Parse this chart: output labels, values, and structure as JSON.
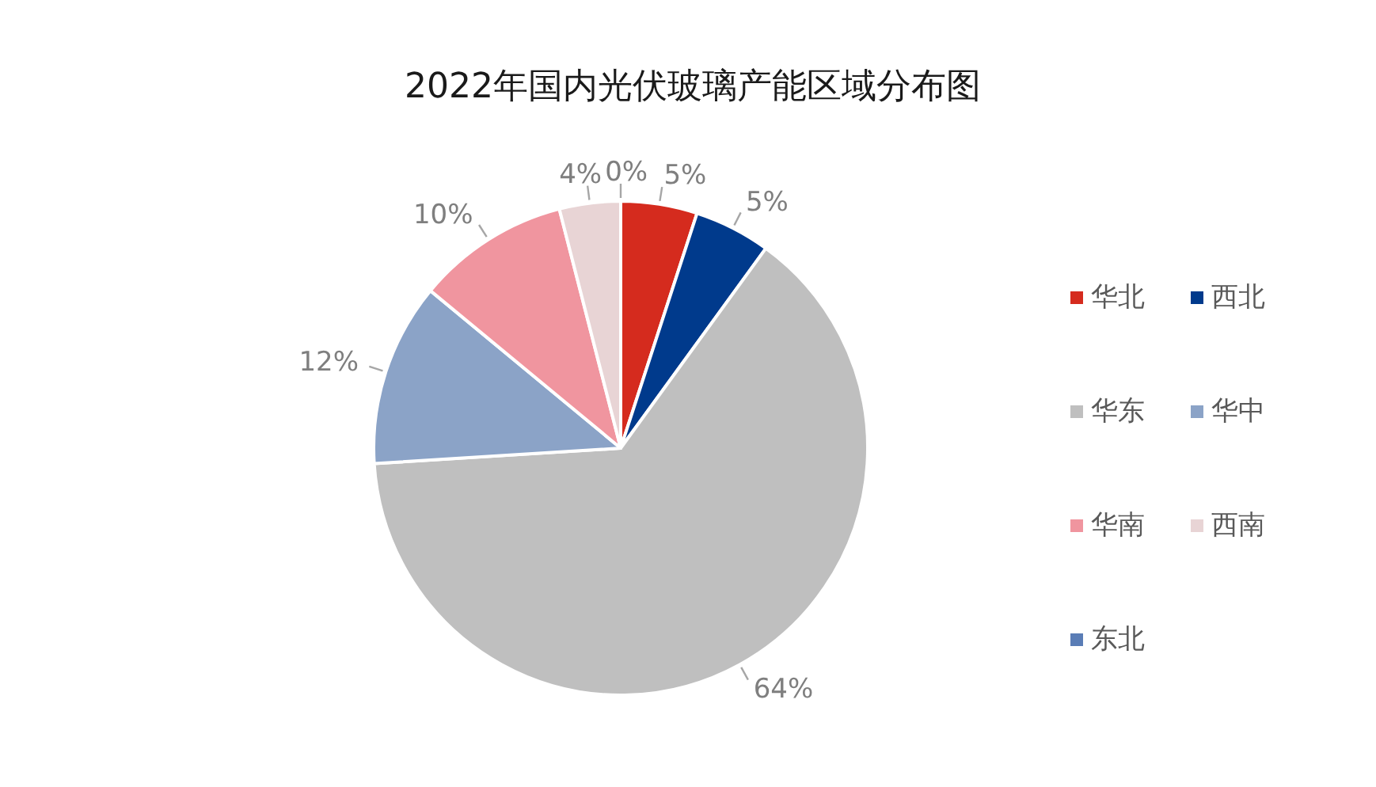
{
  "chart_data": {
    "type": "pie",
    "title": "2022年国内光伏玻璃产能区域分布图",
    "categories": [
      "华北",
      "西北",
      "华东",
      "华中",
      "华南",
      "西南",
      "东北"
    ],
    "values": [
      5,
      5,
      64,
      12,
      10,
      4,
      0
    ],
    "value_labels": [
      "5%",
      "5%",
      "64%",
      "12%",
      "10%",
      "4%",
      "0%"
    ],
    "colors": [
      "#d52b1e",
      "#003a8c",
      "#bfbfbf",
      "#8ba3c7",
      "#f0959f",
      "#e8d4d5",
      "#5a7db6"
    ],
    "legend": "right"
  }
}
